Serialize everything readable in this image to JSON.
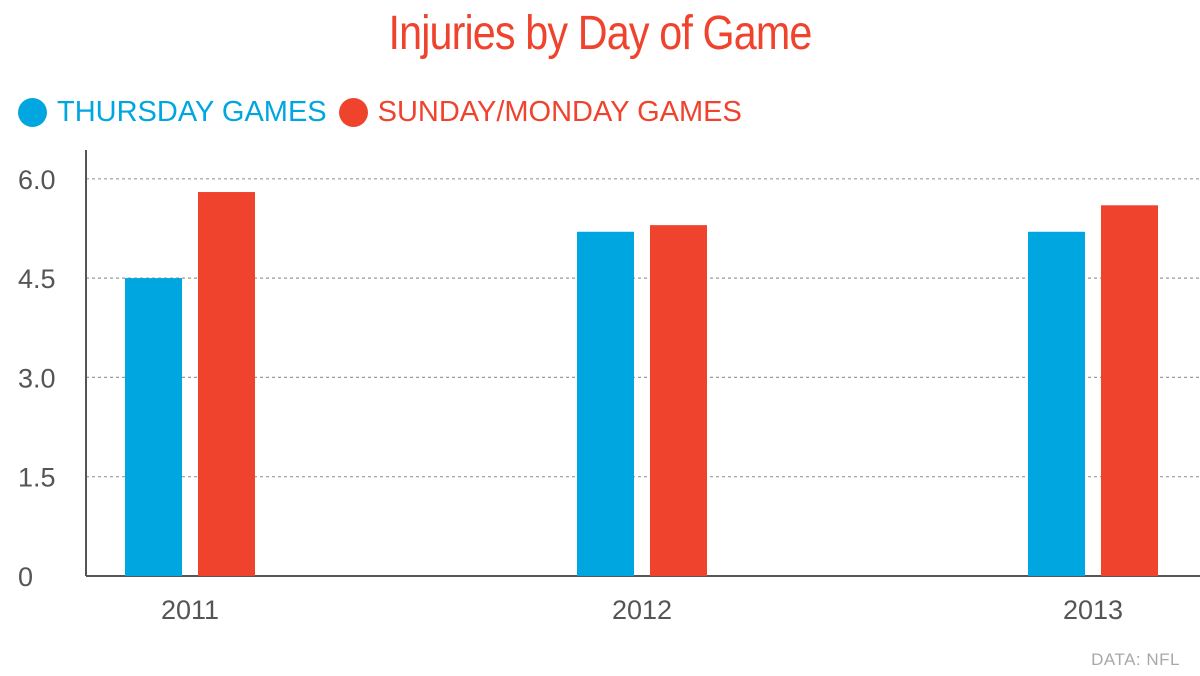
{
  "chart_data": {
    "type": "bar",
    "title": "Injuries by Day of Game",
    "categories": [
      "2011",
      "2012",
      "2013"
    ],
    "series": [
      {
        "name": "THURSDAY GAMES",
        "values": [
          4.5,
          5.2,
          5.2
        ],
        "color": "#00a6e0"
      },
      {
        "name": "SUNDAY/MONDAY GAMES",
        "values": [
          5.8,
          5.3,
          5.6
        ],
        "color": "#ef432e"
      }
    ],
    "yticks": [
      "0",
      "1.5",
      "3.0",
      "4.5",
      "6.0"
    ],
    "ylim": [
      0,
      6.4
    ],
    "grid": true,
    "legend_position": "top-left",
    "source": "DATA: NFL",
    "title_color": "#ef432e"
  }
}
